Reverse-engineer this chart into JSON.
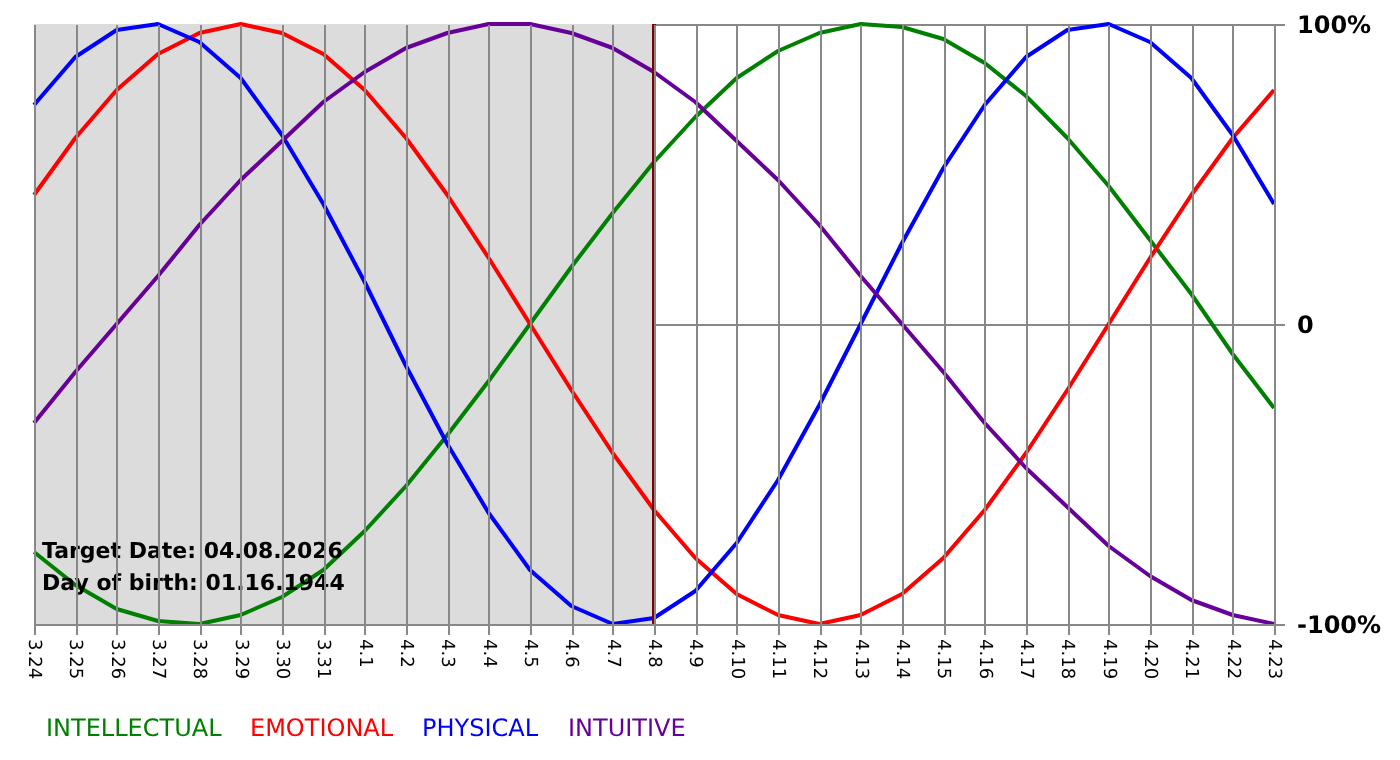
{
  "chart_data": {
    "type": "line",
    "categories": [
      "3.24",
      "3.25",
      "3.26",
      "3.27",
      "3.28",
      "3.29",
      "3.30",
      "3.31",
      "4.1",
      "4.2",
      "4.3",
      "4.4",
      "4.5",
      "4.6",
      "4.7",
      "4.8",
      "4.9",
      "4.10",
      "4.11",
      "4.12",
      "4.13",
      "4.14",
      "4.15",
      "4.16",
      "4.17",
      "4.18",
      "4.19",
      "4.20",
      "4.21",
      "4.22",
      "4.23"
    ],
    "series": [
      {
        "name": "INTELLECTUAL",
        "color": "#008000",
        "values": [
          -76,
          -87,
          -95,
          -99,
          -100,
          -97,
          -91,
          -82,
          -69,
          -54,
          -37,
          -19,
          0,
          19,
          37,
          54,
          69,
          82,
          91,
          97,
          100,
          99,
          95,
          87,
          76,
          62,
          46,
          28,
          10,
          -10,
          -28
        ]
      },
      {
        "name": "EMOTIONAL",
        "color": "#ff0000",
        "values": [
          43,
          62,
          78,
          90,
          97,
          100,
          97,
          90,
          78,
          62,
          43,
          22,
          0,
          -22,
          -43,
          -62,
          -78,
          -90,
          -97,
          -100,
          -97,
          -90,
          -78,
          -62,
          -43,
          -22,
          0,
          22,
          43,
          62,
          78
        ]
      },
      {
        "name": "PHYSICAL",
        "color": "#0000ff",
        "values": [
          73,
          89,
          98,
          100,
          94,
          82,
          63,
          40,
          14,
          -14,
          -40,
          -63,
          -82,
          -94,
          -100,
          -98,
          -89,
          -73,
          -52,
          -27,
          0,
          27,
          52,
          73,
          89,
          98,
          100,
          94,
          82,
          63,
          40
        ]
      },
      {
        "name": "INTUITIVE",
        "color": "#660099",
        "values": [
          -33,
          -16,
          0,
          16,
          33,
          48,
          61,
          74,
          84,
          92,
          97,
          100,
          100,
          97,
          92,
          84,
          74,
          61,
          48,
          33,
          16,
          0,
          -16,
          -33,
          -48,
          -61,
          -74,
          -84,
          -92,
          -97,
          -100
        ]
      }
    ],
    "ylim": [
      -100,
      100
    ],
    "yticks": [
      {
        "value": -100,
        "label": "-100%"
      },
      0,
      {
        "value": 100,
        "label": "100%"
      }
    ],
    "grid": true,
    "legend": "bottom",
    "marker": "none",
    "line_style": "solid",
    "ref_lines": [
      {
        "axis": "x",
        "value": "4.8",
        "color": "#800000"
      }
    ],
    "bands": [
      {
        "axis": "x",
        "from": "3.24",
        "to": "4.8",
        "color": "#dcdcdc"
      }
    ],
    "annotations": [
      "Target Date: 04.08.2026",
      "Day of birth: 01.16.1944"
    ]
  }
}
